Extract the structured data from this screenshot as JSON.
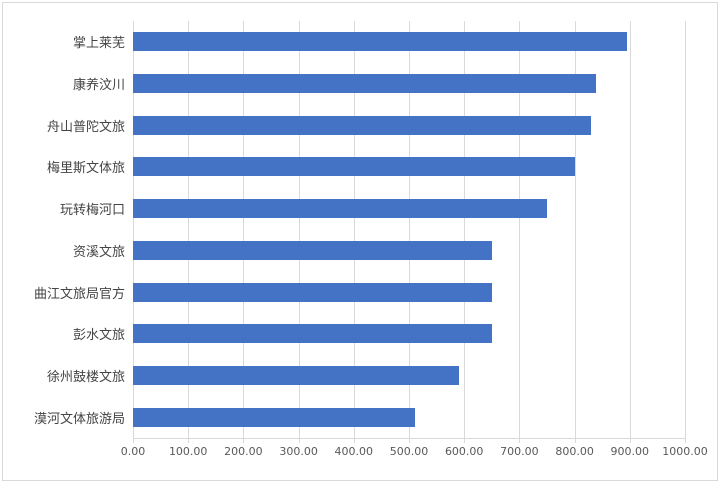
{
  "chart_data": {
    "type": "bar",
    "orientation": "horizontal",
    "title": "",
    "xlabel": "",
    "ylabel": "",
    "categories": [
      "掌上莱芜",
      "康养汶川",
      "舟山普陀文旅",
      "梅里斯文体旅",
      "玩转梅河口",
      "资溪文旅",
      "曲江文旅局官方",
      "彭水文旅",
      "徐州鼓楼文旅",
      "漠河文体旅游局"
    ],
    "values": [
      895,
      838,
      830,
      800,
      750,
      650,
      650,
      650,
      590,
      510
    ],
    "xlim": [
      0,
      1000
    ],
    "x_ticks": [
      0,
      100,
      200,
      300,
      400,
      500,
      600,
      700,
      800,
      900,
      1000
    ],
    "x_tick_labels": [
      "0.00",
      "100.00",
      "200.00",
      "300.00",
      "400.00",
      "500.00",
      "600.00",
      "700.00",
      "800.00",
      "900.00",
      "1000.00"
    ],
    "grid": "vertical",
    "legend": "none",
    "colors": {
      "bar": "#4472c4",
      "gridline": "#d9d9d9",
      "frame": "#d9d9d9",
      "category_label": "#444444",
      "tick_label": "#595959",
      "background": "#ffffff"
    }
  }
}
